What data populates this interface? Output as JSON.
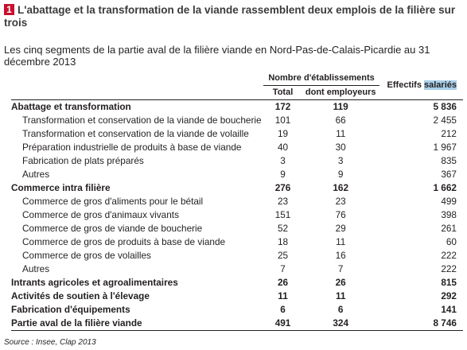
{
  "figure_number": "1",
  "title": "L'abattage et la transformation de la viande rassemblent deux emplois de la filière sur trois",
  "subtitle": "Les cinq segments de la partie aval de la filière viande en Nord-Pas-de-Calais-Picardie au 31 décembre 2013",
  "table": {
    "header_group": "Nombre d'établissements",
    "col_total": "Total",
    "col_employeurs": "dont employeurs",
    "col_effectifs_prefix": "Effectifs ",
    "col_effectifs_highlight": "salariés",
    "rows": [
      {
        "label": "Abattage et transformation",
        "total": "172",
        "employeurs": "119",
        "effectifs": "5 836",
        "bold": true
      },
      {
        "label": "Transformation et conservation de la viande de boucherie",
        "total": "101",
        "employeurs": "66",
        "effectifs": "2 455",
        "bold": false
      },
      {
        "label": "Transformation et conservation de la viande de volaille",
        "total": "19",
        "employeurs": "11",
        "effectifs": "212",
        "bold": false
      },
      {
        "label": "Préparation industrielle de produits à base de viande",
        "total": "40",
        "employeurs": "30",
        "effectifs": "1 967",
        "bold": false
      },
      {
        "label": "Fabrication de plats préparés",
        "total": "3",
        "employeurs": "3",
        "effectifs": "835",
        "bold": false
      },
      {
        "label": "Autres",
        "total": "9",
        "employeurs": "9",
        "effectifs": "367",
        "bold": false
      },
      {
        "label": "Commerce intra filière",
        "total": "276",
        "employeurs": "162",
        "effectifs": "1 662",
        "bold": true
      },
      {
        "label": "Commerce de gros d'aliments pour le bétail",
        "total": "23",
        "employeurs": "23",
        "effectifs": "499",
        "bold": false
      },
      {
        "label": "Commerce de gros d'animaux vivants",
        "total": "151",
        "employeurs": "76",
        "effectifs": "398",
        "bold": false
      },
      {
        "label": "Commerce de gros de viande de boucherie",
        "total": "52",
        "employeurs": "29",
        "effectifs": "261",
        "bold": false
      },
      {
        "label": "Commerce de gros de produits à base de viande",
        "total": "18",
        "employeurs": "11",
        "effectifs": "60",
        "bold": false
      },
      {
        "label": "Commerce de gros de volailles",
        "total": "25",
        "employeurs": "16",
        "effectifs": "222",
        "bold": false
      },
      {
        "label": "Autres",
        "total": "7",
        "employeurs": "7",
        "effectifs": "222",
        "bold": false
      },
      {
        "label": "Intrants agricoles et agroalimentaires",
        "total": "26",
        "employeurs": "26",
        "effectifs": "815",
        "bold": true
      },
      {
        "label": "Activités de soutien à l'élevage",
        "total": "11",
        "employeurs": "11",
        "effectifs": "292",
        "bold": true
      },
      {
        "label": "Fabrication d'équipements",
        "total": "6",
        "employeurs": "6",
        "effectifs": "141",
        "bold": true
      },
      {
        "label": "Partie aval de la filière viande",
        "total": "491",
        "employeurs": "324",
        "effectifs": "8 746",
        "bold": true
      }
    ]
  },
  "source": "Source : Insee, Clap 2013"
}
